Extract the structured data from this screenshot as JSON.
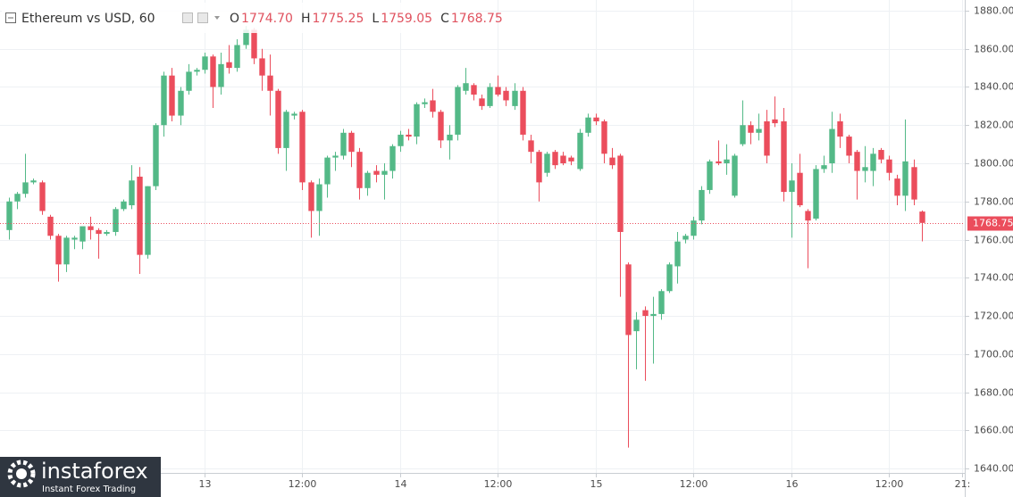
{
  "header": {
    "symbol": "Ethereum vs USD, 60",
    "ohlc": [
      {
        "label": "O",
        "value": "1774.70"
      },
      {
        "label": "H",
        "value": "1775.25"
      },
      {
        "label": "L",
        "value": "1759.05"
      },
      {
        "label": "C",
        "value": "1768.75"
      }
    ]
  },
  "logo": {
    "name": "instaforex",
    "tagline": "Instant Forex Trading"
  },
  "chart_data": {
    "type": "candlestick",
    "up_color": "#53b987",
    "down_color": "#eb4d5c",
    "grid": true,
    "last_price": 1768.75,
    "last_price_label": "1768.75",
    "open": [
      1765,
      1780,
      1784,
      1790,
      1790,
      1772,
      1762,
      1747,
      1760,
      1759,
      1767,
      1765,
      1763,
      1764,
      1776,
      1778,
      1793,
      1752,
      1788,
      1820,
      1846,
      1825,
      1838,
      1848,
      1849,
      1856,
      1840,
      1853,
      1850,
      1862,
      1870,
      1855,
      1846,
      1838,
      1808,
      1825,
      1827,
      1790,
      1775,
      1789,
      1803,
      1804,
      1816,
      1806,
      1787,
      1796,
      1794,
      1796,
      1809,
      1815,
      1814,
      1831,
      1833,
      1827,
      1812,
      1815,
      1838,
      1841,
      1834,
      1830,
      1840,
      1838,
      1830,
      1838,
      1812,
      1806,
      1795,
      1806,
      1804,
      1803,
      1797,
      1816,
      1824,
      1822,
      1803,
      1804,
      1747,
      1712,
      1723,
      1720,
      1721,
      1733,
      1746,
      1760,
      1762,
      1770,
      1786,
      1801,
      1800,
      1783,
      1810,
      1820,
      1816,
      1822,
      1823,
      1822,
      1785,
      1795,
      1775,
      1771,
      1797,
      1800,
      1822,
      1814,
      1806,
      1796,
      1796,
      1807,
      1802,
      1792,
      1783,
      1798,
      1774.7
    ],
    "high": [
      1782,
      1785,
      1805,
      1792,
      1791,
      1773,
      1763,
      1762,
      1762,
      1765,
      1772,
      1766,
      1765,
      1777,
      1781,
      1799,
      1798,
      1788,
      1821,
      1848,
      1850,
      1840,
      1852,
      1850,
      1858,
      1857,
      1858,
      1862,
      1865,
      1872,
      1871,
      1860,
      1857,
      1839,
      1828,
      1827,
      1828,
      1791,
      1792,
      1804,
      1806,
      1818,
      1817,
      1808,
      1796,
      1799,
      1800,
      1810,
      1817,
      1818,
      1832,
      1834,
      1839,
      1828,
      1820,
      1841,
      1850,
      1842,
      1836,
      1842,
      1846,
      1840,
      1842,
      1840,
      1815,
      1807,
      1806,
      1807,
      1806,
      1804,
      1818,
      1826,
      1826,
      1823,
      1808,
      1805,
      1748,
      1722,
      1725,
      1730,
      1734,
      1748,
      1764,
      1763,
      1772,
      1788,
      1802,
      1812,
      1810,
      1805,
      1833,
      1822,
      1826,
      1828,
      1835,
      1829,
      1800,
      1805,
      1776,
      1799,
      1804,
      1827,
      1826,
      1815,
      1807,
      1809,
      1808,
      1808,
      1804,
      1794,
      1823,
      1802,
      1775.25
    ],
    "low": [
      1760,
      1776,
      1782,
      1789,
      1773,
      1760,
      1738,
      1743,
      1755,
      1755,
      1760,
      1750,
      1762,
      1762,
      1775,
      1776,
      1742,
      1750,
      1786,
      1814,
      1822,
      1820,
      1836,
      1846,
      1847,
      1829,
      1836,
      1847,
      1848,
      1860,
      1852,
      1838,
      1825,
      1805,
      1796,
      1823,
      1786,
      1761,
      1762,
      1782,
      1796,
      1802,
      1798,
      1781,
      1783,
      1790,
      1781,
      1792,
      1806,
      1812,
      1810,
      1829,
      1824,
      1808,
      1802,
      1812,
      1836,
      1833,
      1828,
      1829,
      1835,
      1830,
      1828,
      1812,
      1800,
      1780,
      1793,
      1797,
      1799,
      1799,
      1796,
      1814,
      1820,
      1800,
      1797,
      1730,
      1651,
      1692,
      1686,
      1695,
      1718,
      1732,
      1737,
      1758,
      1760,
      1768,
      1784,
      1799,
      1794,
      1782,
      1809,
      1810,
      1812,
      1800,
      1819,
      1780,
      1761,
      1777,
      1745,
      1770,
      1795,
      1795,
      1808,
      1800,
      1781,
      1790,
      1788,
      1800,
      1791,
      1778,
      1775,
      1778,
      1759.05
    ],
    "close": [
      1780,
      1784,
      1790,
      1791,
      1775,
      1762,
      1747,
      1761,
      1761,
      1767,
      1765,
      1763,
      1764,
      1776,
      1780,
      1791,
      1752,
      1788,
      1820,
      1846,
      1825,
      1838,
      1848,
      1849,
      1856,
      1840,
      1852,
      1850,
      1862,
      1870,
      1855,
      1846,
      1838,
      1808,
      1827,
      1826,
      1790,
      1775,
      1789,
      1803,
      1804,
      1816,
      1806,
      1787,
      1795,
      1794,
      1796,
      1809,
      1815,
      1814,
      1831,
      1832,
      1827,
      1812,
      1815,
      1840,
      1842,
      1836,
      1830,
      1840,
      1836,
      1833,
      1838,
      1815,
      1806,
      1790,
      1805,
      1799,
      1800,
      1801,
      1816,
      1824,
      1822,
      1805,
      1799,
      1764,
      1710,
      1718,
      1720,
      1721,
      1733,
      1747,
      1759,
      1762,
      1770,
      1786,
      1801,
      1800,
      1802,
      1804,
      1820,
      1816,
      1818,
      1804,
      1821,
      1785,
      1791,
      1778,
      1770,
      1797,
      1799,
      1818,
      1814,
      1804,
      1796,
      1798,
      1805,
      1802,
      1795,
      1783,
      1801,
      1781,
      1768.75
    ],
    "xlim": [
      -1.1,
      117.3
    ],
    "xticks": [
      {
        "value": 24,
        "label": "13"
      },
      {
        "value": 36,
        "label": "12:00"
      },
      {
        "value": 48,
        "label": "14"
      },
      {
        "value": 60,
        "label": "12:00"
      },
      {
        "value": 72,
        "label": "15"
      },
      {
        "value": 84,
        "label": "12:00"
      },
      {
        "value": 96,
        "label": "16"
      },
      {
        "value": 108,
        "label": "12:00"
      },
      {
        "value": 117,
        "label": "21:"
      }
    ],
    "ylim": [
      1637.7,
      1885.6
    ],
    "yticks": [
      {
        "value": 1640,
        "label": "1640.00"
      },
      {
        "value": 1660,
        "label": "1660.00"
      },
      {
        "value": 1680,
        "label": "1680.00"
      },
      {
        "value": 1700,
        "label": "1700.00"
      },
      {
        "value": 1720,
        "label": "1720.00"
      },
      {
        "value": 1740,
        "label": "1740.00"
      },
      {
        "value": 1760,
        "label": "1760.00"
      },
      {
        "value": 1780,
        "label": "1780.00"
      },
      {
        "value": 1800,
        "label": "1800.00"
      },
      {
        "value": 1820,
        "label": "1820.00"
      },
      {
        "value": 1840,
        "label": "1840.00"
      },
      {
        "value": 1860,
        "label": "1860.00"
      },
      {
        "value": 1880,
        "label": "1880.00"
      }
    ]
  }
}
